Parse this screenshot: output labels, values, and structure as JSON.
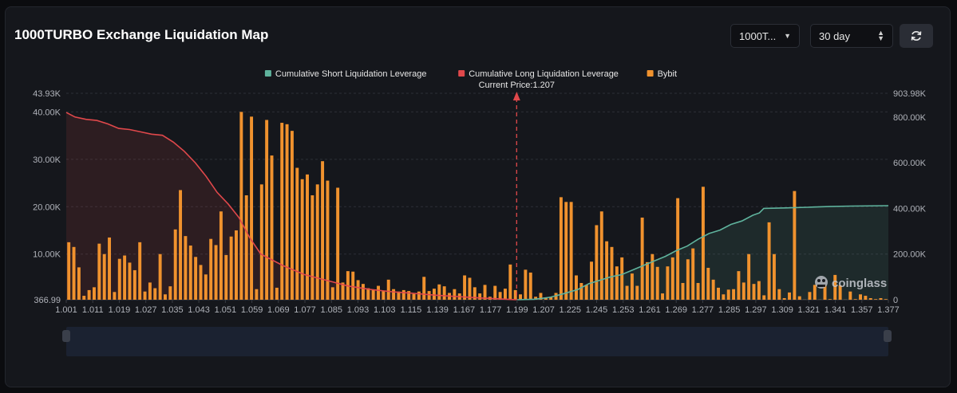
{
  "header": {
    "title": "1000TURBO Exchange Liquidation Map",
    "symbol_select": "1000T...",
    "period_select": "30 day"
  },
  "icons": {
    "refresh": "refresh-icon",
    "watermark": "coinglass-logo-icon"
  },
  "watermark": "coinglass",
  "colors": {
    "short": "#5fb39d",
    "long": "#e0484b",
    "bybit": "#f0922e",
    "background": "#15171c",
    "grid": "#2c2f36"
  },
  "chart_data": {
    "type": "bar",
    "legend": {
      "placement": "top-center",
      "items": [
        {
          "label": "Cumulative Short Liquidation Leverage",
          "color": "#5fb39d"
        },
        {
          "label": "Cumulative Long Liquidation Leverage",
          "color": "#e0484b"
        },
        {
          "label": "Bybit",
          "color": "#f0922e"
        }
      ]
    },
    "annotation": {
      "label": "Current Price:1.207",
      "x": 1.207
    },
    "x": {
      "range": [
        1.001,
        1.377
      ],
      "tick_labels": [
        "1.001",
        "1.011",
        "1.019",
        "1.027",
        "1.035",
        "1.043",
        "1.051",
        "1.059",
        "1.069",
        "1.077",
        "1.085",
        "1.093",
        "1.103",
        "1.115",
        "1.139",
        "1.167",
        "1.177",
        "1.199",
        "1.207",
        "1.225",
        "1.245",
        "1.253",
        "1.261",
        "1.269",
        "1.277",
        "1.285",
        "1.297",
        "1.309",
        "1.321",
        "1.341",
        "1.357",
        "1.377"
      ]
    },
    "y_left": {
      "range": [
        366.99,
        43930
      ],
      "tick_labels": [
        "43.93K",
        "40.00K",
        "30.00K",
        "20.00K",
        "10.00K",
        "366.99"
      ],
      "tick_values": [
        43930,
        40000,
        30000,
        20000,
        10000,
        366.99
      ]
    },
    "y_right": {
      "range": [
        0,
        903980
      ],
      "tick_labels": [
        "903.98K",
        "800.00K",
        "600.00K",
        "400.00K",
        "200.00K",
        "0"
      ],
      "tick_values": [
        903980,
        800000,
        600000,
        400000,
        200000,
        0
      ]
    },
    "grid": true,
    "series": [
      {
        "name": "Bybit",
        "type": "bar",
        "values": [
          12500,
          11500,
          7200,
          1200,
          2400,
          3000,
          12200,
          10000,
          13500,
          2000,
          9000,
          9700,
          8200,
          6600,
          12500,
          2100,
          4000,
          2800,
          10000,
          1500,
          3200,
          15200,
          23500,
          13800,
          11800,
          9400,
          7700,
          5700,
          13200,
          11900,
          19000,
          9800,
          13700,
          15000,
          40000,
          22400,
          39000,
          2600,
          24700,
          38300,
          30800,
          2900,
          37700,
          37400,
          36000,
          28200,
          25800,
          26800,
          22400,
          24700,
          29600,
          25500,
          3000,
          24000,
          4000,
          6400,
          6300,
          4500,
          3700,
          2800,
          2400,
          3300,
          2200,
          4600,
          2600,
          2100,
          2400,
          2200,
          1600,
          2100,
          5200,
          2200,
          2700,
          3600,
          3200,
          1800,
          2600,
          1700,
          5500,
          5000,
          3000,
          1700,
          3500,
          1000,
          3300,
          2000,
          2700,
          7800,
          2400,
          1500,
          6700,
          6100,
          1000,
          1800,
          700,
          1000,
          1800,
          22000,
          21000,
          21000,
          5500,
          3900,
          3500,
          8400,
          16100,
          19000,
          12700,
          11500,
          7400,
          9300,
          3300,
          5900,
          3300,
          17700,
          8300,
          10000,
          7300,
          1700,
          7400,
          9300,
          21800,
          3900,
          8900,
          11200,
          3900,
          24200,
          7100,
          4600,
          2900,
          1500,
          2500,
          2600,
          6400,
          4000,
          10000,
          3700,
          4300,
          1300,
          16700,
          10000,
          2600,
          700,
          1900,
          23300,
          1100,
          400,
          2000,
          3500,
          400,
          3400,
          500,
          5600,
          3400,
          400,
          2100,
          500,
          1500,
          1200,
          700,
          500,
          700,
          500
        ]
      },
      {
        "name": "Cumulative Short Liquidation Leverage",
        "type": "line",
        "points": [
          [
            1.207,
            0
          ],
          [
            1.215,
            2000
          ],
          [
            1.222,
            10000
          ],
          [
            1.228,
            25000
          ],
          [
            1.235,
            45000
          ],
          [
            1.24,
            70000
          ],
          [
            1.245,
            85000
          ],
          [
            1.25,
            100000
          ],
          [
            1.255,
            110000
          ],
          [
            1.26,
            130000
          ],
          [
            1.265,
            150000
          ],
          [
            1.27,
            170000
          ],
          [
            1.275,
            190000
          ],
          [
            1.28,
            215000
          ],
          [
            1.285,
            235000
          ],
          [
            1.29,
            265000
          ],
          [
            1.295,
            290000
          ],
          [
            1.3,
            305000
          ],
          [
            1.305,
            330000
          ],
          [
            1.31,
            345000
          ],
          [
            1.315,
            370000
          ],
          [
            1.318,
            380000
          ],
          [
            1.32,
            400000
          ],
          [
            1.33,
            402000
          ],
          [
            1.34,
            405000
          ],
          [
            1.35,
            408000
          ],
          [
            1.36,
            410000
          ],
          [
            1.377,
            412000
          ]
        ]
      },
      {
        "name": "Cumulative Long Liquidation Leverage",
        "type": "line",
        "points": [
          [
            1.001,
            820000
          ],
          [
            1.005,
            800000
          ],
          [
            1.01,
            790000
          ],
          [
            1.015,
            785000
          ],
          [
            1.02,
            770000
          ],
          [
            1.025,
            750000
          ],
          [
            1.03,
            745000
          ],
          [
            1.035,
            735000
          ],
          [
            1.04,
            725000
          ],
          [
            1.045,
            720000
          ],
          [
            1.05,
            690000
          ],
          [
            1.055,
            650000
          ],
          [
            1.06,
            600000
          ],
          [
            1.065,
            540000
          ],
          [
            1.07,
            470000
          ],
          [
            1.075,
            420000
          ],
          [
            1.08,
            360000
          ],
          [
            1.085,
            270000
          ],
          [
            1.09,
            200000
          ],
          [
            1.1,
            150000
          ],
          [
            1.11,
            110000
          ],
          [
            1.12,
            85000
          ],
          [
            1.13,
            60000
          ],
          [
            1.14,
            45000
          ],
          [
            1.15,
            35000
          ],
          [
            1.16,
            28000
          ],
          [
            1.17,
            20000
          ],
          [
            1.18,
            14000
          ],
          [
            1.19,
            8000
          ],
          [
            1.2,
            3000
          ],
          [
            1.207,
            0
          ]
        ]
      }
    ]
  }
}
